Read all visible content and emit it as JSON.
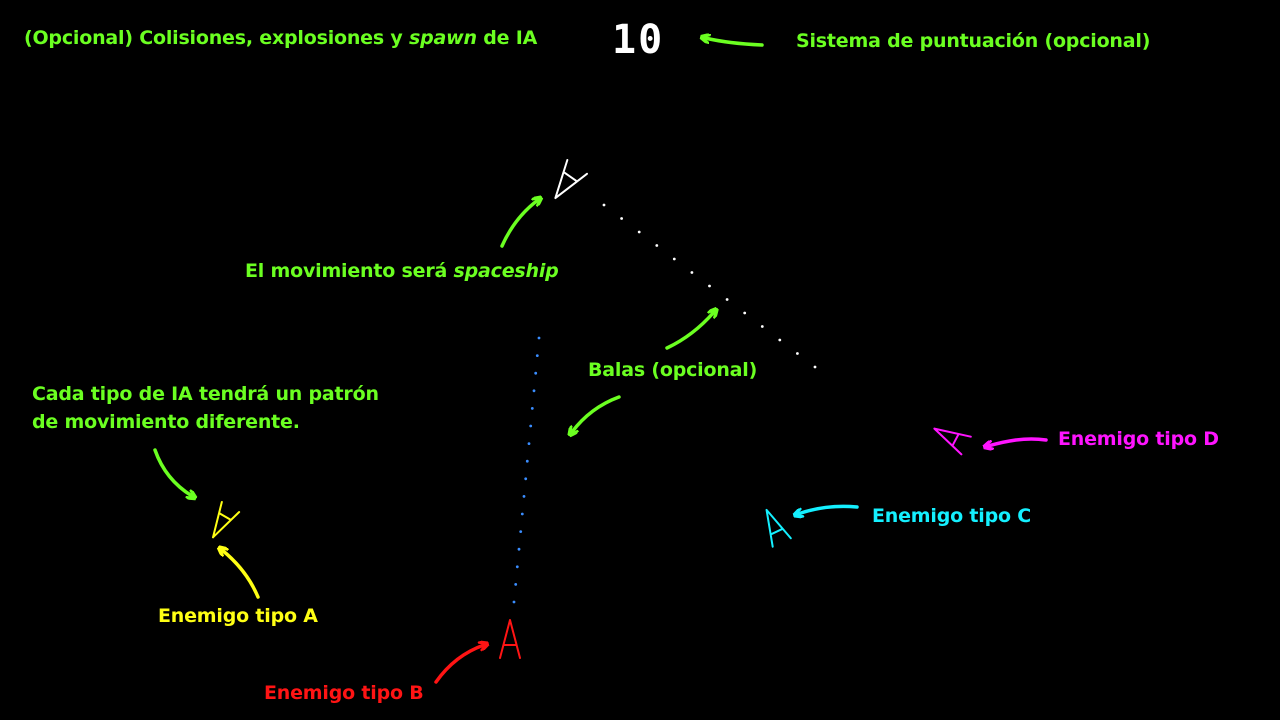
{
  "score": "10",
  "labels": {
    "collisions_prefix": "(Opcional) Colisiones, explosiones y ",
    "collisions_italic": "spawn",
    "collisions_suffix": " de IA",
    "scoring": "Sistema de puntuación (opcional)",
    "movement_prefix": "El movimiento será ",
    "movement_italic": "spaceship",
    "bullets": "Balas (opcional)",
    "ai_line1": "Cada tipo de IA tendrá un patrón",
    "ai_line2": "de movimiento diferente.",
    "enemy_a": "Enemigo tipo A",
    "enemy_b": "Enemigo tipo B",
    "enemy_c": "Enemigo tipo C",
    "enemy_d": "Enemigo tipo D"
  },
  "colors": {
    "background": "#000000",
    "annotation": "#6BFF21",
    "player": "#FFFFFF",
    "enemy_a": "#FFFF14",
    "enemy_b": "#FF1414",
    "enemy_c": "#14F0FF",
    "enemy_d": "#FF14FF",
    "player_bullet": "#FFFFFF",
    "enemy_bullet": "#3A8DFF"
  },
  "icons": {
    "player_ship": "player-ship-icon",
    "enemy_ship": "enemy-ship-icon",
    "arrow": "curved-arrow-icon"
  }
}
